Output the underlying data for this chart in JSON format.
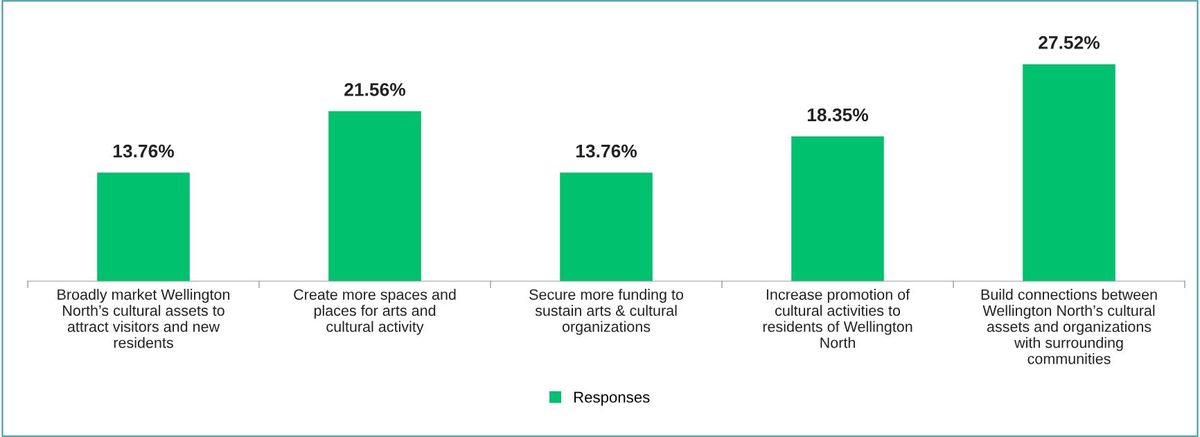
{
  "chart_data": {
    "type": "bar",
    "categories": [
      "Broadly market Wellington North’s cultural assets to attract visitors and new residents",
      "Create more spaces and places for arts and cultural activity",
      "Secure more funding to sustain arts & cultural organizations",
      "Increase promotion of cultural activities to residents of Wellington North",
      "Build connections between Wellington North’s cultural assets and organizations with surrounding communities"
    ],
    "series": [
      {
        "name": "Responses",
        "color": "#00c16e",
        "values": [
          13.76,
          21.56,
          13.76,
          18.35,
          27.52
        ],
        "value_labels": [
          "13.76%",
          "21.56%",
          "13.76%",
          "18.35%",
          "27.52%"
        ]
      }
    ],
    "legend": "bottom",
    "grid": false,
    "tick_labels": "x"
  }
}
